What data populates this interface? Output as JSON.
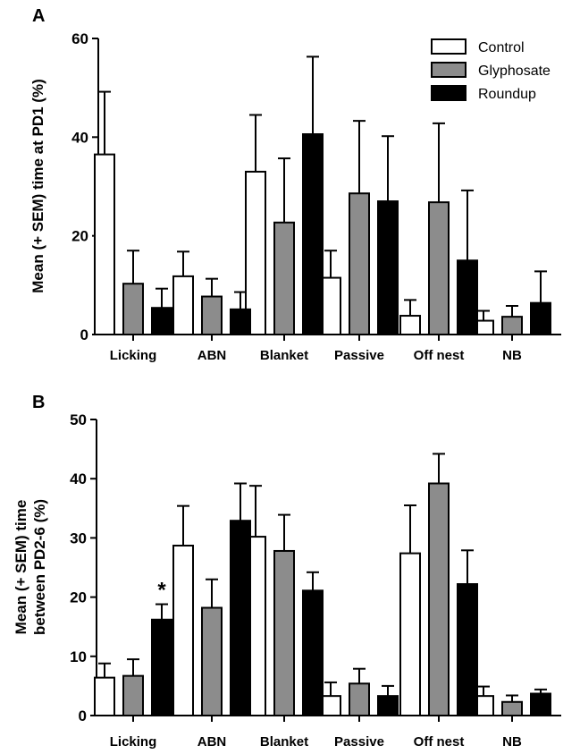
{
  "chart_data": [
    {
      "type": "bar",
      "panel": "A",
      "ylabel": "Mean (+ SEM) time at PD1 (%)",
      "ylim": [
        0,
        60
      ],
      "yticks": [
        0,
        20,
        40,
        60
      ],
      "categories": [
        "Licking",
        "ABN",
        "Blanket",
        "Passive",
        "Off nest",
        "NB"
      ],
      "series": [
        {
          "name": "Control",
          "color": "#ffffff",
          "values": [
            36.5,
            11.8,
            33.0,
            11.5,
            3.8,
            2.8
          ],
          "errors": [
            12.7,
            5.0,
            11.5,
            5.5,
            3.2,
            2.0
          ]
        },
        {
          "name": "Glyphosate",
          "color": "#8c8c8c",
          "values": [
            10.3,
            7.7,
            22.7,
            28.6,
            26.8,
            3.6
          ],
          "errors": [
            6.7,
            3.6,
            13.0,
            14.7,
            16.0,
            2.2
          ]
        },
        {
          "name": "Roundup",
          "color": "#000000",
          "values": [
            5.4,
            5.1,
            40.6,
            27.0,
            15.0,
            6.4
          ],
          "errors": [
            3.9,
            3.5,
            15.7,
            13.2,
            14.2,
            6.4
          ]
        }
      ],
      "legend": "top-right",
      "annotations": []
    },
    {
      "type": "bar",
      "panel": "B",
      "ylabel_lines": [
        "Mean (+ SEM) time",
        "between PD2-6 (%)"
      ],
      "ylim": [
        0,
        50
      ],
      "yticks": [
        0,
        10,
        20,
        30,
        40,
        50
      ],
      "categories": [
        "Licking",
        "ABN",
        "Blanket",
        "Passive",
        "Off nest",
        "NB"
      ],
      "series": [
        {
          "name": "Control",
          "color": "#ffffff",
          "values": [
            6.4,
            28.7,
            30.2,
            3.3,
            27.4,
            3.3
          ],
          "errors": [
            2.4,
            6.7,
            8.6,
            2.3,
            8.1,
            1.6
          ]
        },
        {
          "name": "Glyphosate",
          "color": "#8c8c8c",
          "values": [
            6.7,
            18.2,
            27.8,
            5.4,
            39.2,
            2.3
          ],
          "errors": [
            2.8,
            4.8,
            6.1,
            2.5,
            5.0,
            1.1
          ]
        },
        {
          "name": "Roundup",
          "color": "#000000",
          "values": [
            16.2,
            32.9,
            21.1,
            3.3,
            22.2,
            3.7
          ],
          "errors": [
            2.6,
            6.3,
            3.1,
            1.7,
            5.7,
            0.7
          ]
        }
      ],
      "annotations": [
        {
          "text": "*",
          "category": "Licking",
          "series": "Roundup"
        }
      ]
    }
  ]
}
